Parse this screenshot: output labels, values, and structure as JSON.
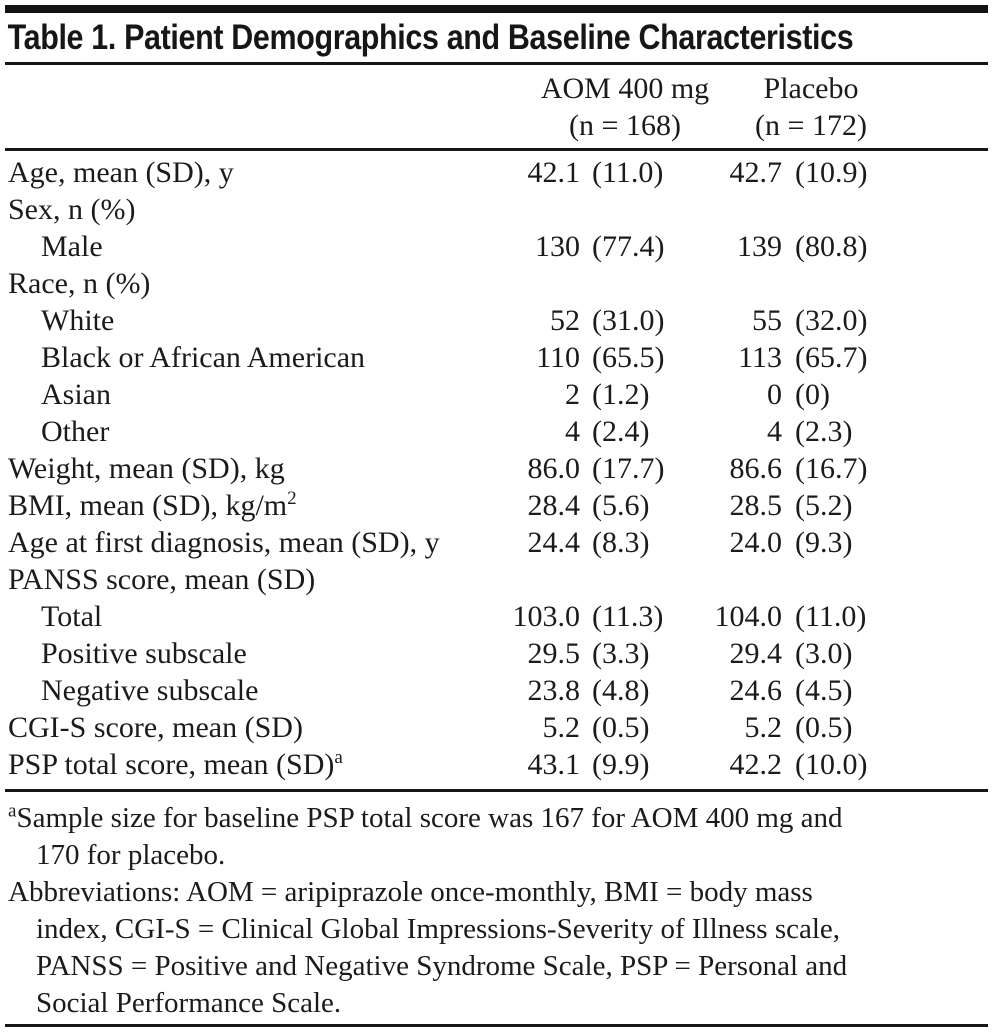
{
  "table": {
    "title": "Table 1. Patient Demographics and Baseline Characteristics",
    "columns": [
      {
        "name": "AOM 400 mg",
        "n": "(n = 168)"
      },
      {
        "name": "Placebo",
        "n": "(n = 172)"
      }
    ],
    "rows": [
      {
        "label": "Age, mean (SD), y",
        "indent": 0,
        "aom": "42.1 (11.0)",
        "placebo": "42.7 (10.9)"
      },
      {
        "label": "Sex, n (%)",
        "indent": 0,
        "aom": "",
        "placebo": ""
      },
      {
        "label": "Male",
        "indent": 1,
        "aom": "130 (77.4)",
        "placebo": "139 (80.8)"
      },
      {
        "label": "Race, n (%)",
        "indent": 0,
        "aom": "",
        "placebo": ""
      },
      {
        "label": "White",
        "indent": 1,
        "aom": "52 (31.0)",
        "placebo": "55 (32.0)"
      },
      {
        "label": "Black or African American",
        "indent": 1,
        "aom": "110 (65.5)",
        "placebo": "113 (65.7)"
      },
      {
        "label": "Asian",
        "indent": 1,
        "aom": "2 (1.2)",
        "placebo": "0 (0)"
      },
      {
        "label": "Other",
        "indent": 1,
        "aom": "4 (2.4)",
        "placebo": "4 (2.3)"
      },
      {
        "label": "Weight, mean (SD), kg",
        "indent": 0,
        "aom": "86.0 (17.7)",
        "placebo": "86.6 (16.7)"
      },
      {
        "label": "BMI, mean (SD), kg/m",
        "sup": "2",
        "indent": 0,
        "aom": "28.4 (5.6)",
        "placebo": "28.5 (5.2)"
      },
      {
        "label": "Age at first diagnosis, mean (SD), y",
        "indent": 0,
        "aom": "24.4 (8.3)",
        "placebo": "24.0 (9.3)"
      },
      {
        "label": "PANSS score, mean (SD)",
        "indent": 0,
        "aom": "",
        "placebo": ""
      },
      {
        "label": "Total",
        "indent": 1,
        "aom": "103.0 (11.3)",
        "placebo": "104.0 (11.0)"
      },
      {
        "label": "Positive subscale",
        "indent": 1,
        "aom": "29.5 (3.3)",
        "placebo": "29.4 (3.0)"
      },
      {
        "label": "Negative subscale",
        "indent": 1,
        "aom": "23.8 (4.8)",
        "placebo": "24.6 (4.5)"
      },
      {
        "label": "CGI-S score, mean (SD)",
        "indent": 0,
        "aom": "5.2 (0.5)",
        "placebo": "5.2 (0.5)"
      },
      {
        "label": "PSP total score, mean (SD)",
        "sup": "a",
        "indent": 0,
        "aom": "43.1 (9.9)",
        "placebo": "42.2 (10.0)"
      }
    ]
  },
  "footnotes": {
    "sample_size": {
      "marker": "a",
      "lines": [
        "Sample size for baseline PSP total score was 167 for AOM 400 mg and",
        "170 for placebo."
      ]
    },
    "abbreviations": {
      "lines": [
        "Abbreviations: AOM = aripiprazole once-monthly, BMI = body mass",
        "index, CGI-S = Clinical Global Impressions-Severity of Illness scale,",
        "PANSS = Positive and Negative Syndrome Scale, PSP = Personal and",
        "Social Performance Scale."
      ]
    }
  },
  "colors": {
    "text": "#1b1b1b",
    "rule": "#171717",
    "background": "#ffffff"
  }
}
